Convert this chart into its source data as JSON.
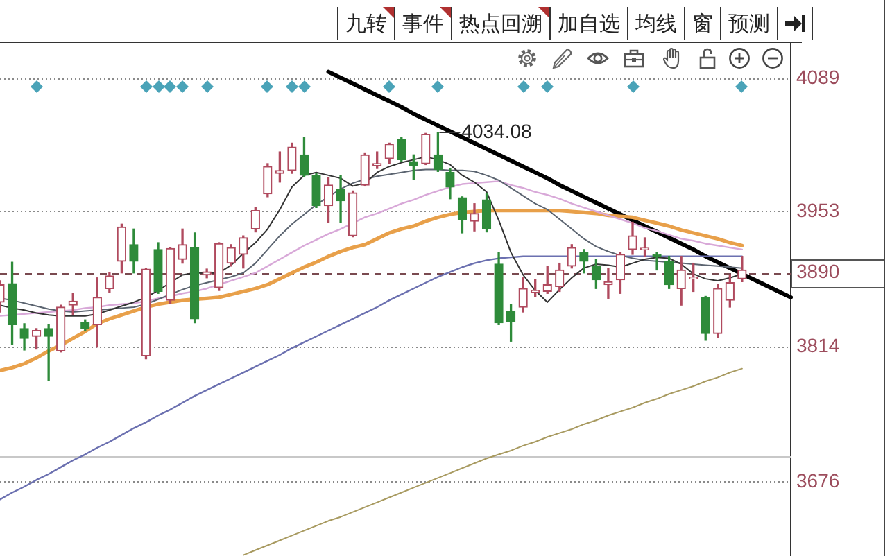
{
  "chart_data": {
    "type": "candlestick",
    "categories": [
      null,
      null,
      null,
      null,
      null,
      null,
      null,
      null,
      null,
      null,
      null,
      null,
      null,
      null,
      null,
      null,
      null,
      null,
      null,
      null,
      null,
      null,
      null,
      null,
      null,
      null,
      null,
      null,
      null,
      null,
      null,
      null,
      null,
      null,
      null,
      null,
      null,
      null,
      null,
      null,
      null,
      null,
      null,
      null,
      null,
      null,
      null,
      null,
      null,
      null,
      null,
      null,
      null,
      null,
      null,
      null,
      null,
      null,
      null,
      null,
      null,
      null,
      null,
      null,
      null,
      null
    ],
    "ohlc": [
      [
        3860,
        3882,
        3850,
        3878
      ],
      [
        3879,
        3901,
        3817,
        3837
      ],
      [
        3833,
        3838,
        3811,
        3823
      ],
      [
        3825,
        3833,
        3812,
        3831
      ],
      [
        3833,
        3837,
        3780,
        3825
      ],
      [
        3810,
        3857,
        3809,
        3855
      ],
      [
        3857,
        3869,
        3847,
        3861
      ],
      [
        3839,
        3842,
        3831,
        3833
      ],
      [
        3837,
        3885,
        3814,
        3865
      ],
      [
        3874,
        3890,
        3870,
        3887
      ],
      [
        3902,
        3940,
        3890,
        3937
      ],
      [
        3919,
        3935,
        3890,
        3902
      ],
      [
        3805,
        3895,
        3802,
        3894
      ],
      [
        3914,
        3921,
        3869,
        3871
      ],
      [
        3862,
        3916,
        3859,
        3915
      ],
      [
        3904,
        3935,
        3900,
        3919
      ],
      [
        3916,
        3931,
        3839,
        3843
      ],
      [
        3888,
        3894,
        3885,
        3891
      ],
      [
        3875,
        3921,
        3872,
        3920
      ],
      [
        3900,
        3919,
        3897,
        3916
      ],
      [
        3909,
        3928,
        3895,
        3926
      ],
      [
        3935,
        3957,
        3932,
        3954
      ],
      [
        3971,
        4002,
        3968,
        3999
      ],
      [
        3992,
        4014,
        3983,
        3995
      ],
      [
        3995,
        4023,
        3992,
        4019
      ],
      [
        4011,
        4029,
        3989,
        3990
      ],
      [
        3990,
        3992,
        3957,
        3959
      ],
      [
        3959,
        3988,
        3942,
        3980
      ],
      [
        3976,
        3990,
        3942,
        3964
      ],
      [
        3928,
        3974,
        3927,
        3972
      ],
      [
        3980,
        4013,
        3979,
        4011
      ],
      [
        4000,
        4014,
        3997,
        4002
      ],
      [
        4007,
        4023,
        4002,
        4022
      ],
      [
        4027,
        4029,
        4004,
        4006
      ],
      [
        4004,
        4011,
        3986,
        4000
      ],
      [
        4002,
        4033,
        4001,
        4032
      ],
      [
        4011,
        4034.08,
        3994,
        3996
      ],
      [
        3993,
        3997,
        3966,
        3978
      ],
      [
        3967,
        3968,
        3931,
        3945
      ],
      [
        3943,
        3961,
        3933,
        3951
      ],
      [
        3965,
        3971,
        3932,
        3935
      ],
      [
        3899,
        3911,
        3837,
        3839
      ],
      [
        3851,
        3858,
        3820,
        3840
      ],
      [
        3855,
        3885,
        3850,
        3874
      ],
      [
        3870,
        3883,
        3866,
        3872
      ],
      [
        3871,
        3897,
        3869,
        3878
      ],
      [
        3876,
        3900,
        3871,
        3893
      ],
      [
        3897,
        3919,
        3895,
        3916
      ],
      [
        3911,
        3914,
        3890,
        3902
      ],
      [
        3897,
        3904,
        3874,
        3883
      ],
      [
        3878,
        3895,
        3864,
        3881
      ],
      [
        3883,
        3911,
        3869,
        3909
      ],
      [
        3914,
        3942,
        3909,
        3928
      ],
      [
        3914,
        3926,
        3907,
        3915
      ],
      [
        3909,
        3911,
        3893,
        3907
      ],
      [
        3902,
        3907,
        3874,
        3878
      ],
      [
        3874,
        3907,
        3857,
        3893
      ],
      [
        3884,
        3900,
        3871,
        3885
      ],
      [
        3865,
        3866,
        3821,
        3828
      ],
      [
        3828,
        3878,
        3824,
        3874
      ],
      [
        3862,
        3888,
        3855,
        3880
      ],
      [
        3884,
        3907,
        3881,
        3893
      ],
      null,
      null,
      null,
      null
    ],
    "colors": [
      "#b04a5e",
      "#2e8b3a",
      "#2e8b3a",
      "#b04a5e",
      "#2e8b3a",
      "#b04a5e",
      "#b04a5e",
      "#2e8b3a",
      "#b04a5e",
      "#b04a5e",
      "#b04a5e",
      "#2e8b3a",
      "#b04a5e",
      "#2e8b3a",
      "#b04a5e",
      "#b04a5e",
      "#2e8b3a",
      "#b04a5e",
      "#b04a5e",
      "#b04a5e",
      "#b04a5e",
      "#b04a5e",
      "#b04a5e",
      "#b04a5e",
      "#b04a5e",
      "#2e8b3a",
      "#2e8b3a",
      "#b04a5e",
      "#2e8b3a",
      "#b04a5e",
      "#b04a5e",
      "#b04a5e",
      "#b04a5e",
      "#2e8b3a",
      "#2e8b3a",
      "#b04a5e",
      "#2e8b3a",
      "#2e8b3a",
      "#2e8b3a",
      "#b04a5e",
      "#2e8b3a",
      "#2e8b3a",
      "#2e8b3a",
      "#b04a5e",
      "#b04a5e",
      "#b04a5e",
      "#b04a5e",
      "#b04a5e",
      "#2e8b3a",
      "#2e8b3a",
      "#b04a5e",
      "#b04a5e",
      "#b04a5e",
      "#b04a5e",
      "#2e8b3a",
      "#2e8b3a",
      "#b04a5e",
      "#b04a5e",
      "#2e8b3a",
      "#b04a5e",
      "#b04a5e",
      "#b04a5e",
      null,
      null,
      null,
      null
    ],
    "series": [
      {
        "type": "line",
        "color": "#333333",
        "values": [
          3857,
          3854,
          3852,
          3849,
          3847,
          3846,
          3846,
          3846,
          3848,
          3852,
          3856,
          3860,
          3865,
          3872,
          3880,
          3888,
          3890,
          3890,
          3890,
          3898,
          3910,
          3921,
          3935,
          3955,
          3978,
          3990,
          3993,
          3990,
          3987,
          3979,
          3982,
          3993,
          3999,
          4003,
          4006,
          4009,
          4006,
          4001,
          3990,
          3983,
          3973,
          3944,
          3911,
          3888,
          3872,
          3860,
          3873,
          3885,
          3895,
          3899,
          3898,
          3896,
          3900,
          3904,
          3906,
          3905,
          3899,
          3889,
          3884,
          3882,
          3885,
          3889,
          null,
          null,
          null,
          null
        ]
      },
      {
        "type": "line",
        "color": "#5b6470",
        "values": [
          3864,
          3862,
          3859,
          3856,
          3853,
          3851,
          3850,
          3851,
          3852,
          3853,
          3854,
          3855,
          3858,
          3863,
          3868,
          3873,
          3877,
          3880,
          3883,
          3886,
          3890,
          3900,
          3914,
          3928,
          3940,
          3950,
          3960,
          3968,
          3976,
          3982,
          3986,
          3989,
          3991,
          3993,
          3995,
          3996,
          3996,
          3995,
          3995,
          3994,
          3990,
          3985,
          3977,
          3969,
          3961,
          3955,
          3945,
          3935,
          3925,
          3917,
          3912,
          3908,
          3905,
          3903,
          3902,
          3901,
          3900,
          3899,
          3898,
          3897,
          3896,
          3895,
          null,
          null,
          null,
          null
        ]
      },
      {
        "type": "line",
        "color": "#d8a8d8",
        "values": [
          3846,
          3847,
          3848,
          3849,
          3850,
          3851,
          3852,
          3854,
          3855,
          3857,
          3858,
          3859,
          3861,
          3864,
          3866,
          3869,
          3871,
          3874,
          3878,
          3882,
          3886,
          3890,
          3897,
          3904,
          3911,
          3918,
          3924,
          3930,
          3935,
          3941,
          3947,
          3951,
          3956,
          3961,
          3965,
          3970,
          3974,
          3978,
          3981,
          3982,
          3983,
          3984,
          3980,
          3977,
          3973,
          3970,
          3966,
          3961,
          3957,
          3953,
          3949,
          3945,
          3941,
          3936,
          3933,
          3929,
          3925,
          3923,
          3920,
          3918,
          3916,
          3914,
          null,
          null,
          null,
          null
        ]
      },
      {
        "type": "line",
        "color": "#e8a04a",
        "values": [
          3790,
          3793,
          3797,
          3803,
          3810,
          3816,
          3823,
          3830,
          3838,
          3843,
          3847,
          3851,
          3855,
          3858,
          3860,
          3862,
          3863,
          3864,
          3865,
          3868,
          3871,
          3874,
          3878,
          3884,
          3890,
          3896,
          3901,
          3907,
          3912,
          3916,
          3919,
          3925,
          3931,
          3935,
          3938,
          3943,
          3947,
          3950,
          3952,
          3953,
          3954,
          3954,
          3954,
          3954,
          3954,
          3954,
          3954,
          3953,
          3952,
          3951,
          3949,
          3948,
          3947,
          3944,
          3941,
          3938,
          3934,
          3931,
          3928,
          3925,
          3921,
          3918,
          null,
          null,
          null,
          null
        ]
      },
      {
        "type": "line",
        "color": "#6b70b0",
        "values": [
          3658,
          3665,
          3671,
          3678,
          3684,
          3691,
          3698,
          3704,
          3711,
          3717,
          3724,
          3731,
          3737,
          3744,
          3750,
          3757,
          3764,
          3770,
          3776,
          3782,
          3788,
          3794,
          3800,
          3806,
          3813,
          3819,
          3825,
          3831,
          3837,
          3843,
          3849,
          3855,
          3862,
          3868,
          3874,
          3880,
          3886,
          3891,
          3896,
          3900,
          3903,
          3905,
          3906,
          3907,
          3907,
          3907,
          3907,
          3907,
          3907,
          3907,
          3907,
          3907,
          3907,
          3907,
          3907,
          3907,
          3907,
          3907,
          3907,
          3907,
          3907,
          3907,
          null,
          null,
          null,
          null
        ]
      },
      {
        "type": "line",
        "color": "#a89a60",
        "values": [
          null,
          null,
          null,
          null,
          null,
          null,
          null,
          null,
          null,
          null,
          null,
          null,
          null,
          null,
          null,
          null,
          null,
          null,
          null,
          null,
          3601,
          3606,
          3611,
          3616,
          3621,
          3626,
          3631,
          3636,
          3640,
          3645,
          3650,
          3655,
          3660,
          3665,
          3670,
          3675,
          3680,
          3685,
          3690,
          3695,
          3700,
          3704,
          3708,
          3713,
          3717,
          3722,
          3726,
          3730,
          3735,
          3739,
          3744,
          3748,
          3752,
          3757,
          3761,
          3766,
          3770,
          3774,
          3779,
          3783,
          3788,
          3792,
          null,
          null,
          null,
          null
        ]
      },
      {
        "type": "line",
        "color": "#000000",
        "values": [
          null,
          null,
          null,
          null,
          null,
          null,
          null,
          null,
          null,
          null,
          null,
          null,
          null,
          null,
          null,
          null,
          null,
          null,
          null,
          null,
          null,
          null,
          null,
          null,
          null,
          null,
          null,
          4096,
          4090,
          4084,
          4078,
          4072,
          4066,
          4060,
          4053,
          4047,
          4041,
          4035,
          4029,
          4023,
          4017,
          4011,
          4005,
          3999,
          3993,
          3987,
          3980,
          3974,
          3968,
          3962,
          3956,
          3950,
          3944,
          3938,
          3932,
          3926,
          3920,
          3914,
          3907,
          3901,
          3895,
          3889,
          3883,
          3877,
          3871,
          3865
        ]
      }
    ],
    "ylim": [
      3600,
      4127
    ],
    "yticks": [
      3676,
      3814,
      3953,
      4089
    ],
    "grid": "y",
    "tick_labels": "y",
    "ref_lines": [
      {
        "axis": "y",
        "value": 3890,
        "label": "3890",
        "line_style": "dashed",
        "color": "#7a4a50"
      },
      {
        "axis": "y",
        "value": 3702,
        "color": "#c8c8c8"
      }
    ],
    "annotations": [
      "4034.08",
      "九转",
      "事件",
      "热点回溯",
      "加自选",
      "均线",
      "窗",
      "预测"
    ]
  }
}
